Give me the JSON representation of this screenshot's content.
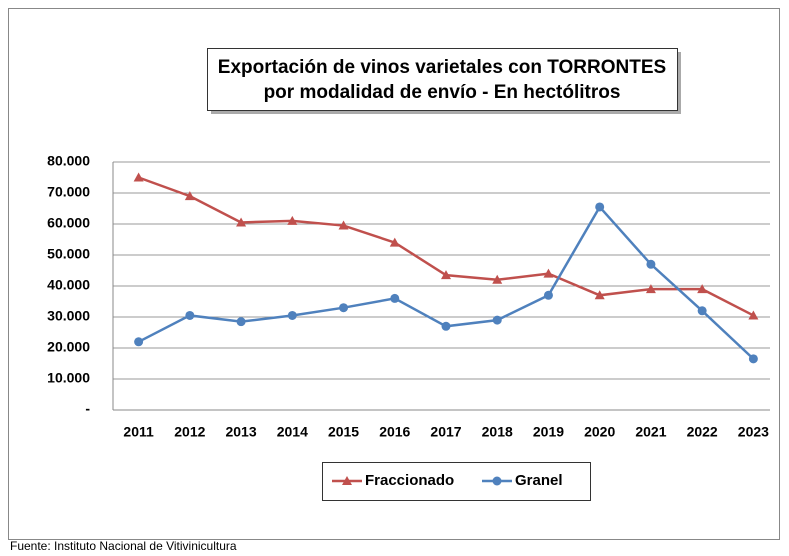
{
  "chart_data": {
    "type": "line",
    "title": [
      "Exportación de vinos varietales con TORRONTES",
      "por modalidad de envío - En hectólitros"
    ],
    "source": "Fuente: Instituto Nacional de Vitivinicultura",
    "categories": [
      "2011",
      "2012",
      "2013",
      "2014",
      "2015",
      "2016",
      "2017",
      "2018",
      "2019",
      "2020",
      "2021",
      "2022",
      "2023"
    ],
    "series": [
      {
        "name": "Fraccionado",
        "color": "#c0504d",
        "marker": "triangle",
        "values": [
          75000,
          69000,
          60500,
          61000,
          59500,
          54000,
          43500,
          42000,
          44000,
          37000,
          39000,
          39000,
          30500
        ]
      },
      {
        "name": "Granel",
        "color": "#4f81bd",
        "marker": "circle",
        "values": [
          22000,
          30500,
          28500,
          30500,
          33000,
          36000,
          27000,
          29000,
          37000,
          65500,
          47000,
          32000,
          16500
        ]
      }
    ],
    "ylim": [
      0,
      80000
    ],
    "yticks": [
      {
        "value": 0,
        "label": "-"
      },
      {
        "value": 10000,
        "label": "10.000"
      },
      {
        "value": 20000,
        "label": "20.000"
      },
      {
        "value": 30000,
        "label": "30.000"
      },
      {
        "value": 40000,
        "label": "40.000"
      },
      {
        "value": 50000,
        "label": "50.000"
      },
      {
        "value": 60000,
        "label": "60.000"
      },
      {
        "value": 70000,
        "label": "70.000"
      },
      {
        "value": 80000,
        "label": "80.000"
      }
    ],
    "grid": true,
    "legend": "bottom"
  }
}
